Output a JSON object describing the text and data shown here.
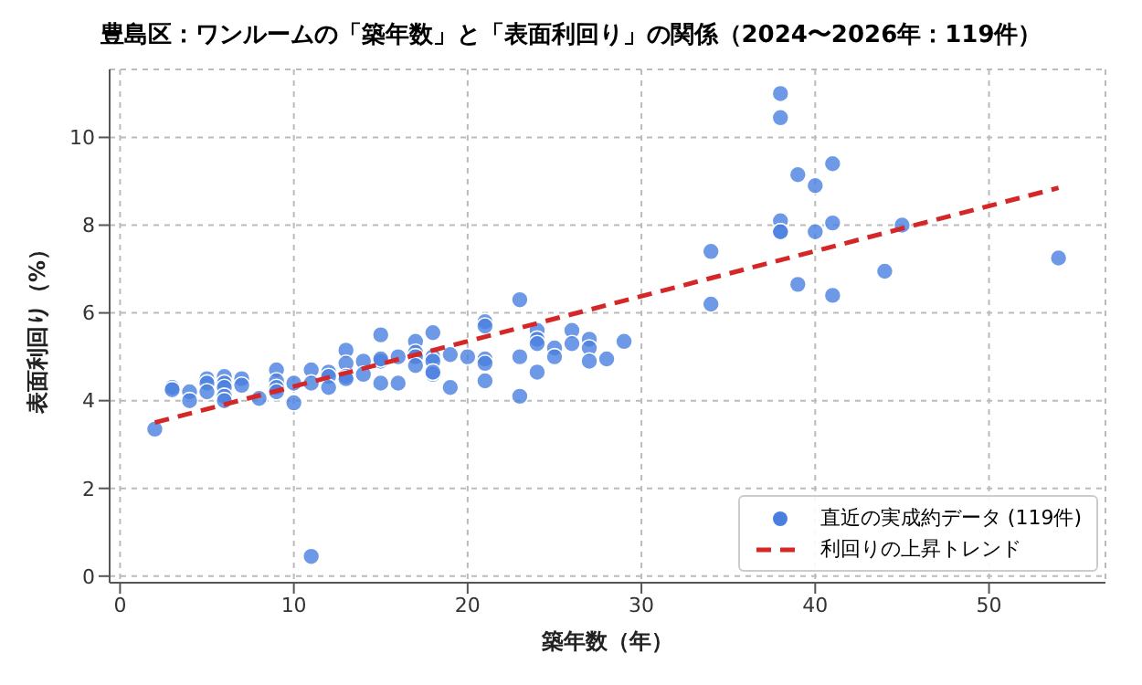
{
  "chart_data": {
    "type": "scatter",
    "title": "豊島区：ワンルームの「築年数」と「表面利回り」の関係（2024〜2026年：119件）",
    "xlabel": "築年数（年）",
    "ylabel": "表面利回り（%）",
    "xlim": [
      -0.6,
      56.7
    ],
    "ylim": [
      -0.15,
      11.55
    ],
    "xticks": [
      0,
      10,
      20,
      30,
      40,
      50
    ],
    "yticks": [
      0,
      2,
      4,
      6,
      8,
      10
    ],
    "grid": true,
    "legend": "bottom right",
    "marker": "circle",
    "series": [
      {
        "name": "直近の実成約データ (119件)",
        "color": "#4a7fe0",
        "x": [
          2,
          3,
          3,
          4,
          4,
          5,
          5,
          5,
          6,
          6,
          6,
          6,
          6,
          7,
          7,
          8,
          9,
          9,
          9,
          9,
          10,
          10,
          11,
          11,
          11,
          12,
          12,
          12,
          13,
          13,
          13,
          13,
          14,
          14,
          15,
          15,
          15,
          15,
          16,
          16,
          17,
          17,
          17,
          17,
          18,
          18,
          18,
          18,
          18,
          19,
          19,
          20,
          21,
          21,
          21,
          21,
          21,
          23,
          23,
          23,
          24,
          24,
          24,
          24,
          25,
          25,
          26,
          26,
          27,
          27,
          27,
          28,
          29,
          34,
          34,
          38,
          38,
          38,
          38,
          38,
          39,
          39,
          40,
          40,
          41,
          41,
          41,
          44,
          45,
          54
        ],
        "values": [
          3.35,
          4.3,
          4.25,
          4.2,
          4.0,
          4.5,
          4.4,
          4.2,
          4.55,
          4.4,
          4.3,
          4.1,
          4.0,
          4.5,
          4.35,
          4.05,
          4.7,
          4.45,
          4.3,
          4.2,
          4.4,
          3.95,
          4.7,
          4.4,
          0.45,
          4.65,
          4.55,
          4.3,
          5.15,
          4.85,
          4.55,
          4.5,
          4.9,
          4.6,
          5.5,
          4.9,
          4.95,
          4.4,
          5.0,
          4.4,
          5.35,
          5.1,
          5.0,
          4.8,
          5.55,
          5.0,
          4.9,
          4.6,
          4.65,
          5.05,
          4.3,
          5.0,
          5.8,
          5.7,
          4.95,
          4.85,
          4.45,
          6.3,
          5.0,
          4.1,
          5.6,
          5.4,
          5.3,
          4.65,
          5.2,
          5.0,
          5.6,
          5.3,
          5.4,
          5.2,
          4.9,
          4.95,
          5.35,
          7.4,
          6.2,
          11.0,
          10.45,
          8.1,
          7.85,
          7.85,
          9.15,
          6.65,
          8.9,
          7.85,
          9.4,
          8.05,
          6.4,
          6.95,
          8.0,
          7.25
        ]
      },
      {
        "name": "利回りの上昇トレンド",
        "type": "line",
        "color": "#d62728",
        "line_style": "dashed",
        "marker": "none",
        "x": [
          2,
          54
        ],
        "values": [
          3.5,
          8.85
        ]
      }
    ]
  }
}
